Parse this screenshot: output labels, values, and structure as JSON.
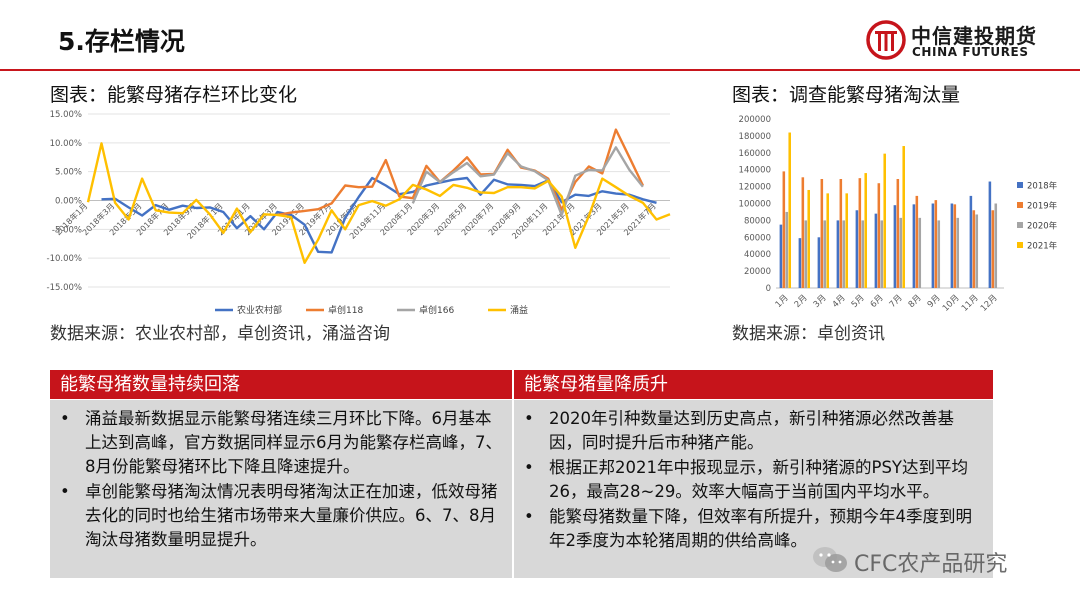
{
  "header": {
    "title": "5.存栏情况",
    "logo_cn": "中信建投期货",
    "logo_en": "CHINA FUTURES"
  },
  "left_chart": {
    "title": "图表：能繁母猪存栏环比变化",
    "source": "数据来源：农业农村部，卓创资讯，涌溢咨询"
  },
  "right_chart": {
    "title": "图表：调查能繁母猪淘汰量",
    "source": "数据来源：卓创资讯"
  },
  "panels": {
    "left": {
      "title": "能繁母猪数量持续回落",
      "bullets": [
        "涌益最新数据显示能繁母猪连续三月环比下降。6月基本上达到高峰，官方数据同样显示6月为能繁存栏高峰，7、8月份能繁母猪环比下降且降速提升。",
        "卓创能繁母猪淘汰情况表明母猪淘汰正在加速，低效母猪去化的同时也给生猪市场带来大量廉价供应。6、7、8月淘汰母猪数量明显提升。"
      ]
    },
    "right": {
      "title": "能繁母猪量降质升",
      "bullets": [
        "2020年引种数量达到历史高点，新引种猪源必然改善基因，同时提升后市种猪产能。",
        "根据正邦2021年中报现显示，新引种猪源的PSY达到平均26，最高28~29。效率大幅高于当前国内平均水平。",
        "能繁母猪数量下降，但效率有所提升，预期今年4季度到明年2季度为本轮猪周期的供给高峰。"
      ]
    }
  },
  "watermark": "CFC农产品研究",
  "colors": {
    "accent_red": "#c6141b",
    "blue": "#4472c4",
    "orange": "#ed7d31",
    "gray": "#a5a5a5",
    "yellow": "#ffc000"
  },
  "chart_data": [
    {
      "type": "line",
      "x": [
        "2018年1月",
        "2018年2月",
        "2018年3月",
        "2018年4月",
        "2018年5月",
        "2018年6月",
        "2018年7月",
        "2018年8月",
        "2018年9月",
        "2018年10月",
        "2018年11月",
        "2018年12月",
        "2019年1月",
        "2019年2月",
        "2019年3月",
        "2019年4月",
        "2019年5月",
        "2019年6月",
        "2019年7月",
        "2019年8月",
        "2019年9月",
        "2019年10月",
        "2019年11月",
        "2019年12月",
        "2020年1月",
        "2020年2月",
        "2020年3月",
        "2020年4月",
        "2020年5月",
        "2020年6月",
        "2020年7月",
        "2020年8月",
        "2020年9月",
        "2020年10月",
        "2020年11月",
        "2020年12月",
        "2021年1月",
        "2021年2月",
        "2021年3月",
        "2021年4月",
        "2021年5月",
        "2021年6月",
        "2021年7月",
        "2021年8月"
      ],
      "xticks": [
        "2018年1月",
        "2018年3月",
        "2018年5月",
        "2018年7月",
        "2018年9月",
        "2018年11月",
        "2019年1月",
        "2019年3月",
        "2019年5月",
        "2019年7月",
        "2019年9月",
        "2019年11月",
        "2020年1月",
        "2020年3月",
        "2020年5月",
        "2020年7月",
        "2020年9月",
        "2020年11月",
        "2021年1月",
        "2021年3月",
        "2021年5月",
        "2021年7月"
      ],
      "ylim": [
        -15,
        15
      ],
      "yticks": [
        "15.00%",
        "10.00%",
        "5.00%",
        "0.00%",
        "-5.00%",
        "-10.00%",
        "-15.00%"
      ],
      "series": [
        {
          "name": "农业农村部",
          "color": "#4472c4",
          "values": [
            null,
            0.2,
            0.3,
            -1.2,
            -2.6,
            -0.8,
            -1.6,
            -0.9,
            -1.3,
            -1.2,
            -2.0,
            -4.8,
            -2.7,
            -5.0,
            -2.0,
            -2.5,
            -4.2,
            -8.9,
            -9.0,
            -3.0,
            0.6,
            3.9,
            2.6,
            1.1,
            1.5,
            2.6,
            3.1,
            3.6,
            3.9,
            1.0,
            3.6,
            2.8,
            2.7,
            2.5,
            3.5,
            -0.3,
            1.0,
            0.8,
            1.6,
            1.2,
            1.0,
            0.2,
            -0.4,
            null
          ]
        },
        {
          "name": "卓创118",
          "color": "#ed7d31",
          "values": [
            null,
            null,
            null,
            null,
            null,
            null,
            null,
            null,
            null,
            null,
            null,
            null,
            null,
            null,
            -2.5,
            -2.1,
            -1.8,
            -1.5,
            -0.5,
            2.6,
            2.3,
            2.4,
            7.0,
            0.7,
            0.4,
            6.0,
            3.2,
            5.2,
            7.5,
            4.5,
            4.6,
            8.8,
            5.7,
            5.2,
            3.8,
            -1.6,
            3.2,
            5.9,
            4.7,
            12.3,
            7.5,
            2.6,
            null,
            null
          ]
        },
        {
          "name": "卓创166",
          "color": "#a5a5a5",
          "values": [
            null,
            null,
            null,
            null,
            null,
            null,
            null,
            null,
            null,
            null,
            null,
            null,
            null,
            null,
            null,
            null,
            null,
            null,
            null,
            null,
            null,
            null,
            null,
            null,
            -0.5,
            5.0,
            3.2,
            4.9,
            6.5,
            4.2,
            4.5,
            8.2,
            5.9,
            5.1,
            3.5,
            -2.5,
            4.3,
            5.3,
            5.2,
            9.2,
            5.3,
            2.4,
            null,
            null
          ]
        },
        {
          "name": "涌益",
          "color": "#ffc000",
          "values": [
            -0.3,
            9.9,
            -0.4,
            -3.3,
            3.8,
            -1.7,
            -2.1,
            -2.2,
            0.1,
            -2.4,
            -5.6,
            -1.4,
            -5.5,
            -2.4,
            -2.5,
            -2.9,
            -10.8,
            -6.8,
            -1.7,
            -5.0,
            -0.8,
            -0.1,
            -0.9,
            0.2,
            2.7,
            1.9,
            0.8,
            2.7,
            2.2,
            1.4,
            1.3,
            2.3,
            2.3,
            2.1,
            3.4,
            0.7,
            -8.2,
            -2.7,
            3.8,
            2.3,
            0.8,
            -0.4,
            -3.3,
            -2.4
          ]
        }
      ]
    },
    {
      "type": "bar",
      "categories": [
        "1月",
        "2月",
        "3月",
        "4月",
        "5月",
        "6月",
        "7月",
        "8月",
        "9月",
        "10月",
        "11月",
        "12月"
      ],
      "ylim": [
        0,
        200000
      ],
      "yticks": [
        "200000",
        "180000",
        "160000",
        "140000",
        "120000",
        "100000",
        "80000",
        "60000",
        "40000",
        "20000",
        "0"
      ],
      "series": [
        {
          "name": "2018年",
          "color": "#4472c4",
          "values": [
            75000,
            59000,
            60000,
            80000,
            92000,
            88000,
            98000,
            99000,
            100000,
            100000,
            109000,
            126000
          ]
        },
        {
          "name": "2019年",
          "color": "#ed7d31",
          "values": [
            138000,
            131000,
            129000,
            129000,
            130000,
            124000,
            129000,
            109000,
            104000,
            99000,
            92000,
            92000
          ]
        },
        {
          "name": "2020年",
          "color": "#a5a5a5",
          "values": [
            90000,
            80000,
            80000,
            80000,
            80000,
            80000,
            83000,
            83000,
            80000,
            83000,
            87000,
            100000
          ]
        },
        {
          "name": "2021年",
          "color": "#ffc000",
          "values": [
            184000,
            116000,
            112000,
            112000,
            136000,
            159000,
            168000,
            null,
            null,
            null,
            null,
            null
          ]
        }
      ]
    }
  ]
}
